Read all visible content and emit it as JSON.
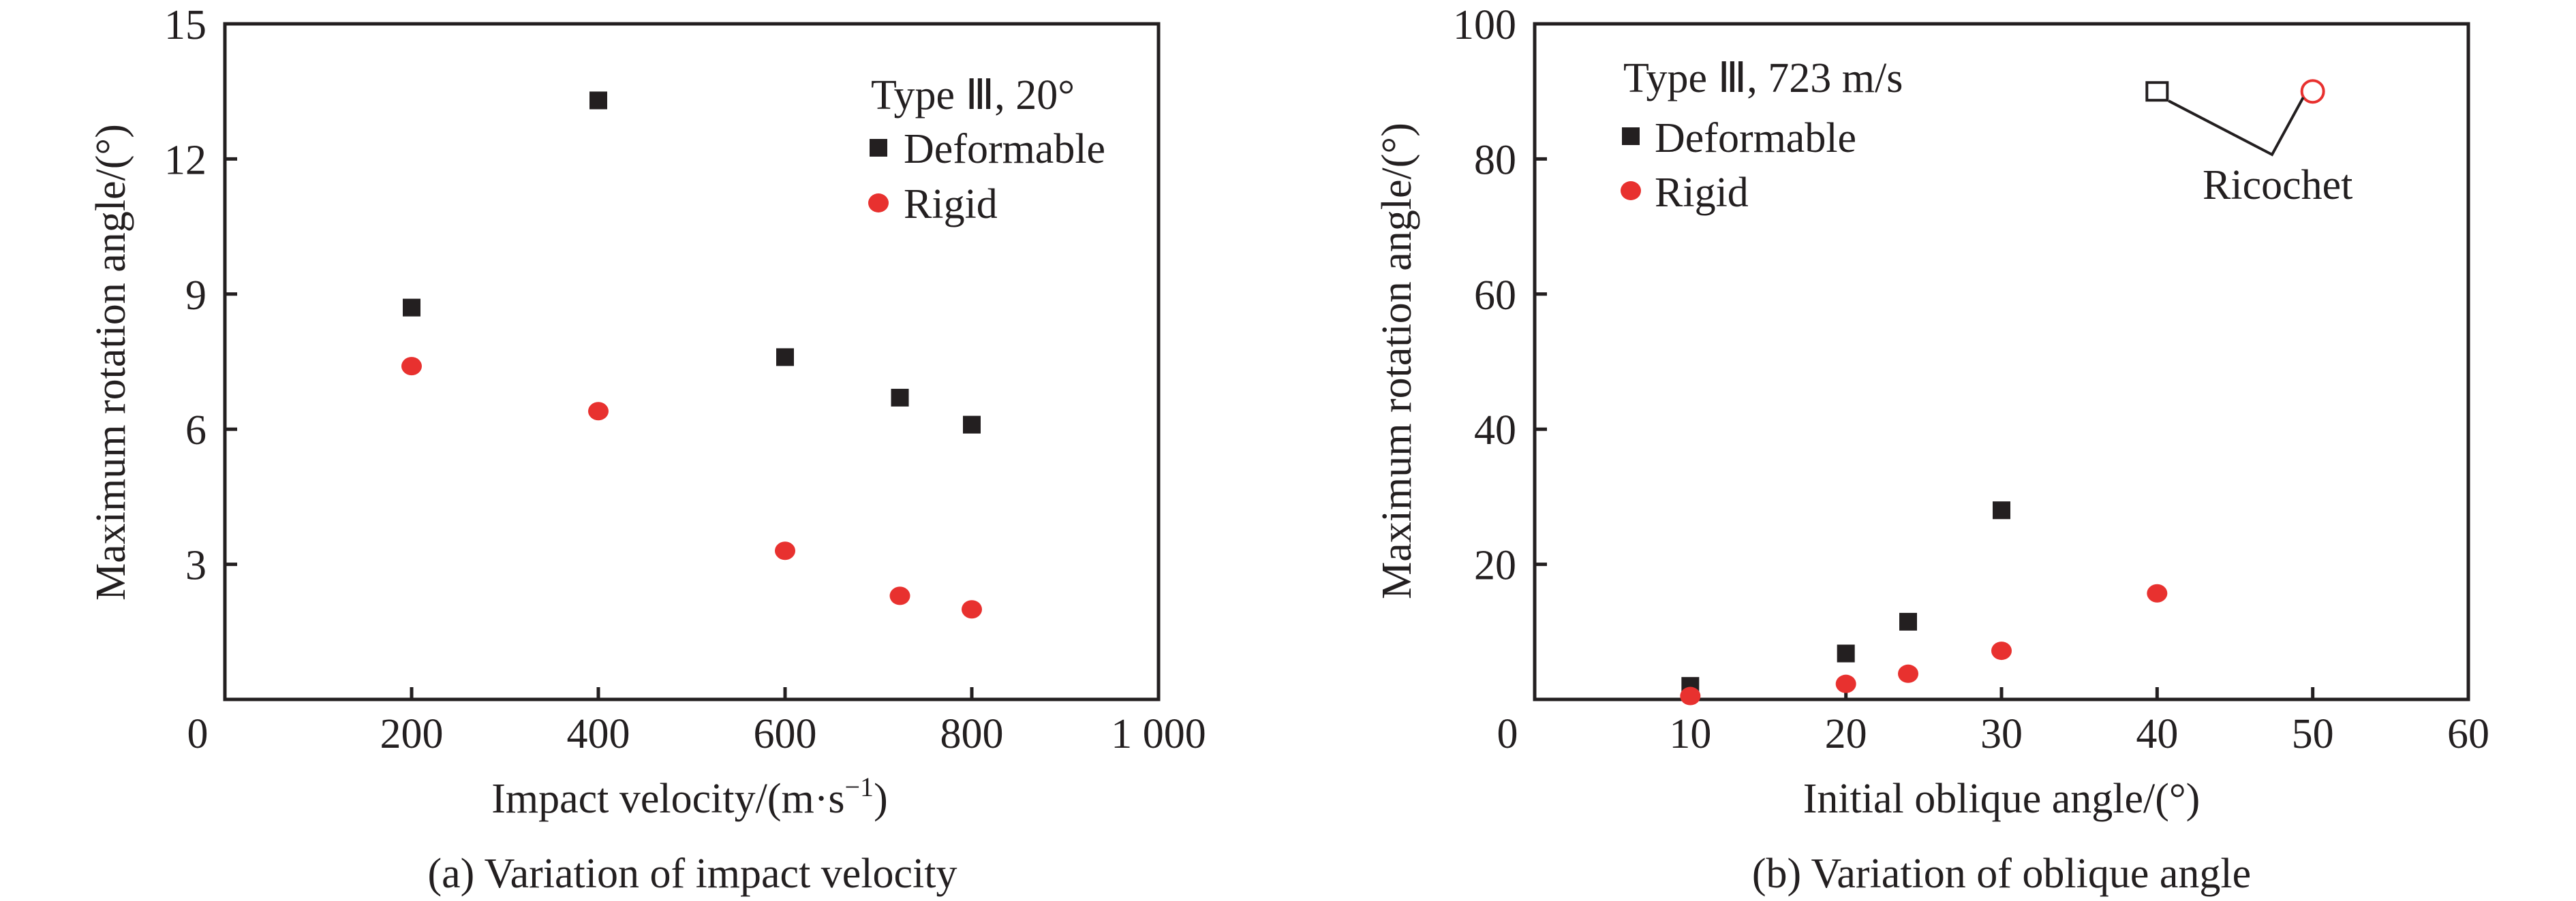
{
  "colors": {
    "deformable": "#231f20",
    "rigid": "#e8312f",
    "axis": "#231f20"
  },
  "chart_data": [
    {
      "type": "scatter",
      "panel": "a",
      "caption": "(a) Variation of impact velocity",
      "xlabel": "Impact velocity/(m·s",
      "xlabel_sup": "−1",
      "xlabel_end": ")",
      "ylabel": "Maximum rotation angle/(°)",
      "xlim": [
        0,
        1000
      ],
      "ylim": [
        0,
        15
      ],
      "xticks": [
        0,
        200,
        400,
        600,
        800,
        1000
      ],
      "xtick_labels": [
        "0",
        "200",
        "400",
        "600",
        "800",
        "1 000"
      ],
      "yticks": [
        3,
        6,
        9,
        12,
        15
      ],
      "ytick_labels": [
        "3",
        "6",
        "9",
        "12",
        "15"
      ],
      "grid": false,
      "legend": {
        "title": "Type Ⅲ, 20°",
        "position": "top-right",
        "entries": [
          "Deformable",
          "Rigid"
        ]
      },
      "series": [
        {
          "name": "Deformable",
          "marker": "square",
          "x": [
            200,
            400,
            600,
            723,
            800
          ],
          "y": [
            8.7,
            13.3,
            7.6,
            6.7,
            6.1
          ]
        },
        {
          "name": "Rigid",
          "marker": "circle",
          "x": [
            200,
            400,
            600,
            723,
            800
          ],
          "y": [
            7.4,
            6.4,
            3.3,
            2.3,
            2.0
          ]
        }
      ]
    },
    {
      "type": "scatter",
      "panel": "b",
      "caption": "(b) Variation of oblique angle",
      "xlabel": "Initial oblique angle/(°)",
      "ylabel": "Maximum rotation angle/(°)",
      "xlim": [
        0,
        60
      ],
      "ylim": [
        0,
        100
      ],
      "xticks": [
        0,
        10,
        20,
        30,
        40,
        50,
        60
      ],
      "xtick_labels": [
        "0",
        "10",
        "20",
        "30",
        "40",
        "50",
        "60"
      ],
      "yticks": [
        20,
        40,
        60,
        80,
        100
      ],
      "ytick_labels": [
        "20",
        "40",
        "60",
        "80",
        "100"
      ],
      "grid": false,
      "legend": {
        "title": "Type Ⅲ, 723 m/s",
        "position": "top-left",
        "entries": [
          "Deformable",
          "Rigid"
        ]
      },
      "series": [
        {
          "name": "Deformable",
          "marker": "square",
          "x": [
            10,
            20,
            24,
            30
          ],
          "y": [
            2.0,
            6.8,
            11.5,
            28.0
          ]
        },
        {
          "name": "Rigid",
          "marker": "circle",
          "x": [
            10,
            20,
            24,
            30,
            40
          ],
          "y": [
            0.5,
            2.3,
            3.8,
            7.2,
            15.7
          ]
        },
        {
          "name": "Deformable (ricochet)",
          "marker": "square-open",
          "x": [
            40
          ],
          "y": [
            90
          ]
        },
        {
          "name": "Rigid (ricochet)",
          "marker": "circle-open",
          "x": [
            50
          ],
          "y": [
            90
          ]
        }
      ],
      "annotation": {
        "text": "Ricochet",
        "points_to": [
          [
            40,
            90
          ],
          [
            50,
            90
          ]
        ]
      }
    }
  ]
}
